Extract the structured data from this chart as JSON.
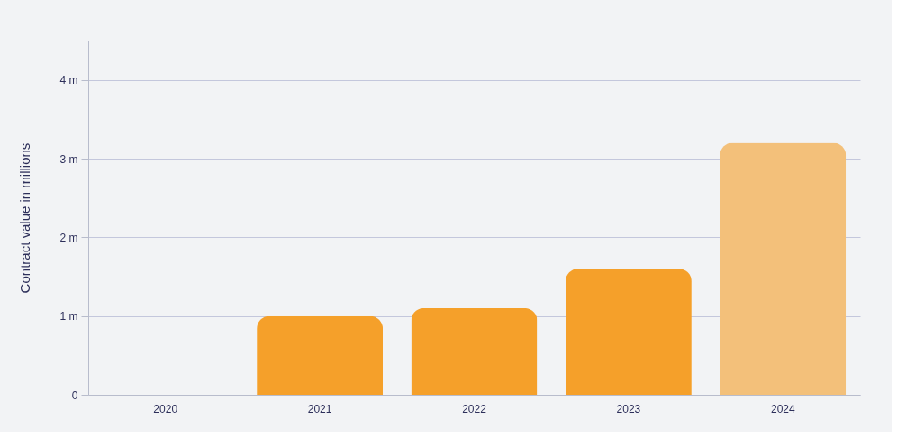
{
  "chart_data": {
    "type": "bar",
    "ylabel": "Contract value in millions",
    "categories": [
      "2020",
      "2021",
      "2022",
      "2023",
      "2024"
    ],
    "values": [
      0,
      1.0,
      1.1,
      1.6,
      3.2
    ],
    "colors": [
      "#f5a02a",
      "#f5a02a",
      "#f5a02a",
      "#f5a02a",
      "#f3c07a"
    ],
    "ylim": [
      0,
      4.5
    ],
    "yticks": [
      0,
      {
        "value": 1,
        "label": "1 m"
      },
      {
        "value": 2,
        "label": "2 m"
      },
      {
        "value": 3,
        "label": "3 m"
      },
      {
        "value": 4,
        "label": "4 m"
      }
    ],
    "grid": "y"
  }
}
